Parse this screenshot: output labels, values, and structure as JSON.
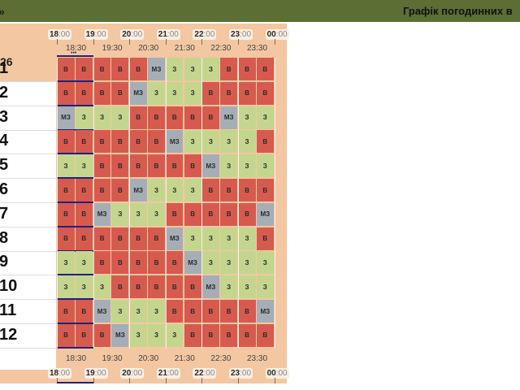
{
  "header": {
    "chevron": "»",
    "title": "Графік погодинних в"
  },
  "schedule": {
    "year_fragment": "26",
    "hours": [
      {
        "h": "18",
        "m": ":00"
      },
      {
        "h": "19",
        "m": ":00"
      },
      {
        "h": "20",
        "m": ":00"
      },
      {
        "h": "21",
        "m": ":00"
      },
      {
        "h": "22",
        "m": ":00"
      },
      {
        "h": "23",
        "m": ":00"
      },
      {
        "h": "00",
        "m": ":00"
      }
    ],
    "half_hours": [
      "18:30",
      "19:30",
      "20:30",
      "21:30",
      "22:30",
      "23:30"
    ],
    "selected_marker": "•••",
    "legend": {
      "В": "#d65b4e",
      "З": "#c4d68e",
      "МЗ": "#a5aeb6"
    },
    "rows": [
      {
        "label": "1",
        "cells": [
          "В",
          "В",
          "В",
          "В",
          "В",
          "МЗ",
          "З",
          "З",
          "З",
          "В",
          "В",
          "В"
        ]
      },
      {
        "label": "2",
        "cells": [
          "В",
          "В",
          "В",
          "В",
          "МЗ",
          "З",
          "З",
          "З",
          "В",
          "В",
          "В",
          "В"
        ]
      },
      {
        "label": "3",
        "cells": [
          "МЗ",
          "З",
          "З",
          "З",
          "В",
          "В",
          "В",
          "В",
          "В",
          "МЗ",
          "З",
          "З"
        ]
      },
      {
        "label": "4",
        "cells": [
          "В",
          "В",
          "В",
          "В",
          "В",
          "В",
          "МЗ",
          "З",
          "З",
          "З",
          "З",
          "В"
        ]
      },
      {
        "label": "5",
        "cells": [
          "З",
          "З",
          "В",
          "В",
          "В",
          "В",
          "В",
          "В",
          "МЗ",
          "З",
          "З",
          "З"
        ]
      },
      {
        "label": "6",
        "cells": [
          "В",
          "В",
          "В",
          "В",
          "МЗ",
          "З",
          "З",
          "З",
          "В",
          "В",
          "В",
          "В"
        ]
      },
      {
        "label": "7",
        "cells": [
          "В",
          "В",
          "МЗ",
          "З",
          "З",
          "З",
          "В",
          "В",
          "В",
          "В",
          "В",
          "МЗ"
        ]
      },
      {
        "label": "8",
        "cells": [
          "В",
          "В",
          "В",
          "В",
          "В",
          "В",
          "МЗ",
          "З",
          "З",
          "З",
          "З",
          "В"
        ]
      },
      {
        "label": "9",
        "cells": [
          "З",
          "З",
          "В",
          "В",
          "В",
          "В",
          "В",
          "МЗ",
          "З",
          "З",
          "З",
          "З"
        ]
      },
      {
        "label": "10",
        "cells": [
          "З",
          "З",
          "З",
          "В",
          "В",
          "В",
          "В",
          "В",
          "МЗ",
          "З",
          "З",
          "З"
        ]
      },
      {
        "label": "11",
        "cells": [
          "В",
          "В",
          "МЗ",
          "З",
          "З",
          "З",
          "В",
          "В",
          "В",
          "В",
          "В",
          "МЗ"
        ]
      },
      {
        "label": "12",
        "cells": [
          "В",
          "В",
          "В",
          "МЗ",
          "З",
          "З",
          "З",
          "В",
          "В",
          "В",
          "В",
          "В"
        ]
      }
    ]
  }
}
